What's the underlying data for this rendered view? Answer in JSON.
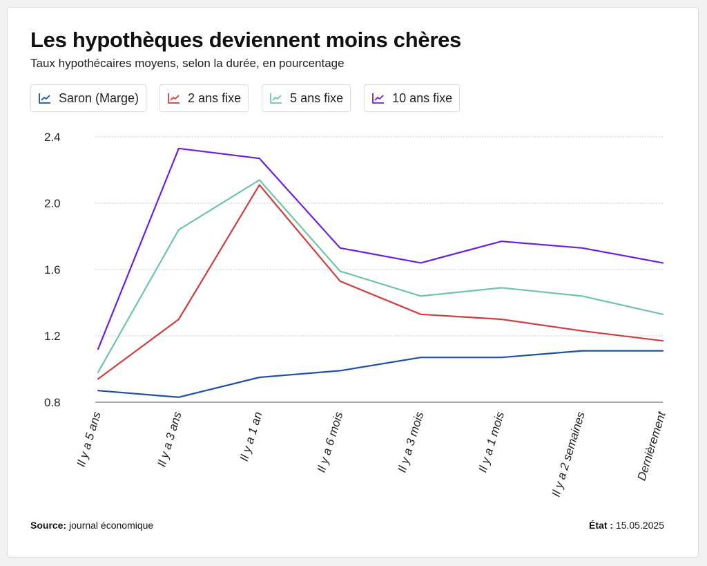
{
  "header": {
    "title": "Les hypothèques deviennent moins chères",
    "subtitle": "Taux hypothécaires moyens, selon la durée, en pourcentage"
  },
  "legend": [
    {
      "label": "Saron (Marge)",
      "color": "#1d4fa3",
      "icon": "line-chart-icon"
    },
    {
      "label": "2 ans fixe",
      "color": "#d13c3c",
      "icon": "line-chart-icon"
    },
    {
      "label": "5 ans fixe",
      "color": "#6dc6a0",
      "icon": "line-chart-icon"
    },
    {
      "label": "10 ans fixe",
      "color": "#6a1ee0",
      "icon": "line-chart-icon"
    }
  ],
  "chart_data": {
    "type": "line",
    "title": "Les hypothèques deviennent moins chères",
    "subtitle": "Taux hypothécaires moyens, selon la durée, en pourcentage",
    "categories": [
      "Il y a 5 ans",
      "Il y a 3 ans",
      "Il y a 1 an",
      "Il y a 6 mois",
      "Il y a 3 mois",
      "Il y a 1 mois",
      "Il y a 2 semaines",
      "Dernièrement"
    ],
    "ylim": [
      0.8,
      2.4
    ],
    "yticks": [
      "0.8",
      "1.2",
      "1.6",
      "2.0",
      "2.4"
    ],
    "grid": true,
    "legend_position": "top",
    "series": [
      {
        "name": "Saron (Marge)",
        "color": "#1d4fa3",
        "values": [
          0.87,
          0.83,
          0.95,
          0.99,
          1.07,
          1.07,
          1.11,
          1.11
        ]
      },
      {
        "name": "2 ans fixe",
        "color": "#d13c3c",
        "values": [
          0.94,
          1.3,
          2.11,
          1.53,
          1.33,
          1.3,
          1.23,
          1.17
        ]
      },
      {
        "name": "5 ans fixe",
        "color": "#6dc6a0",
        "values": [
          0.98,
          1.84,
          2.14,
          1.59,
          1.44,
          1.49,
          1.44,
          1.33
        ]
      },
      {
        "name": "10 ans fixe",
        "color": "#6a1ee0",
        "values": [
          1.12,
          2.33,
          2.27,
          1.73,
          1.64,
          1.77,
          1.73,
          1.64
        ]
      }
    ]
  },
  "footer": {
    "source_label": "Source:",
    "source_value": "journal économique",
    "state_label": "État :",
    "state_value": "15.05.2025"
  }
}
